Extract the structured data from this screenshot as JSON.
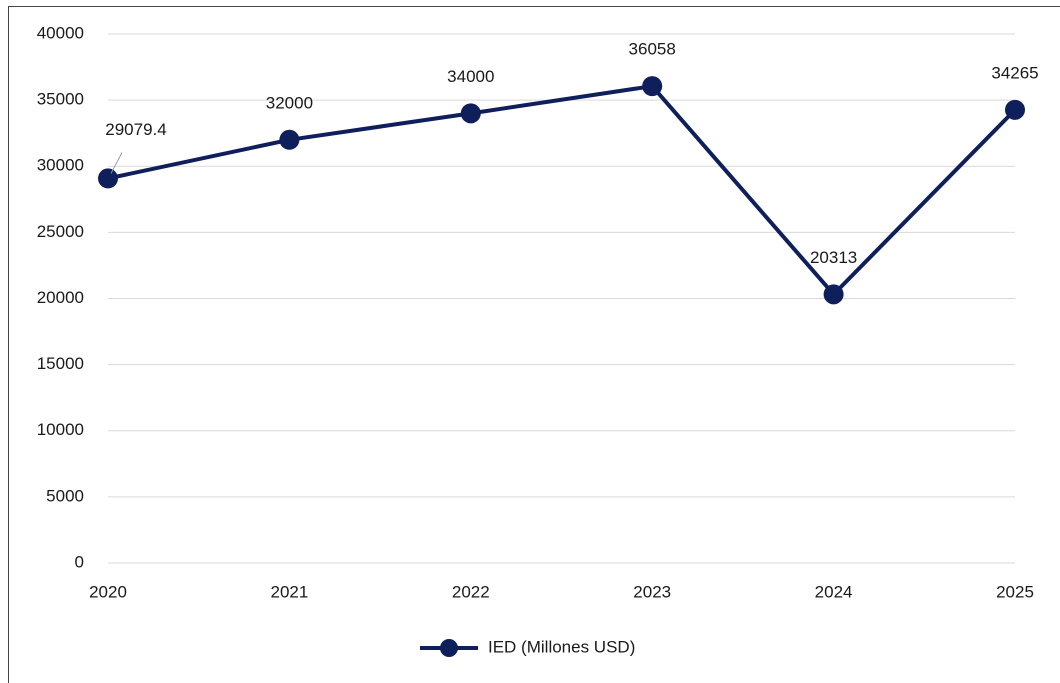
{
  "chart_data": {
    "type": "line",
    "x": [
      2020,
      2021,
      2022,
      2023,
      2024,
      2025
    ],
    "xlim": [
      2020,
      2025
    ],
    "xticks": [
      2020,
      2021,
      2022,
      2023,
      2024,
      2025
    ],
    "series": [
      {
        "name": "IED (Millones USD)",
        "color": "#0e1f5b",
        "values": [
          29079.4,
          32000,
          34000,
          36058,
          20313,
          34265
        ]
      }
    ],
    "ylim": [
      0,
      40000
    ],
    "yticks": [
      0,
      5000,
      10000,
      15000,
      20000,
      25000,
      30000,
      35000,
      40000
    ],
    "grid": true,
    "legend": "bottom"
  }
}
